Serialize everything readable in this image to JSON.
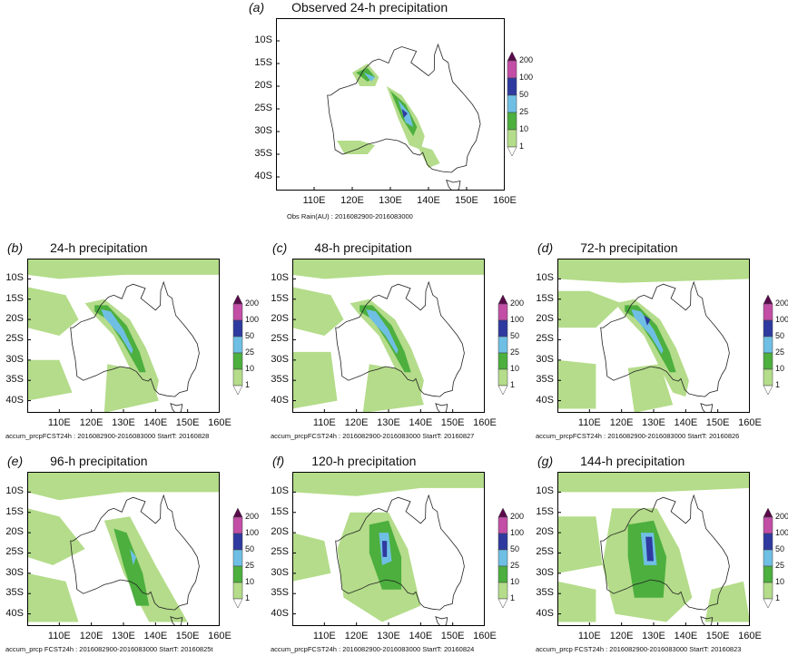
{
  "colors": {
    "light_green": "#b4dc8a",
    "green": "#4caf3e",
    "light_blue": "#6fbfe4",
    "dark_blue": "#2f3aa0",
    "magenta": "#c24ea6",
    "dark_purple": "#5a0a4a",
    "white": "#ffffff"
  },
  "shared": {
    "lat_labels": [
      "10S",
      "15S",
      "20S",
      "25S",
      "30S",
      "35S",
      "40S"
    ],
    "lon_labels": [
      "110E",
      "120E",
      "130E",
      "140E",
      "150E",
      "160E"
    ],
    "colorbar_labels": [
      "200",
      "100",
      "50",
      "25",
      "10",
      "1"
    ]
  },
  "panels": {
    "a": {
      "letter": "(a)",
      "title": "Observed 24-h precipitation",
      "footer": "Obs Rain(AU) : 2016082900-2016083000"
    },
    "b": {
      "letter": "(b)",
      "title": "24-h precipitation",
      "footer": "accum_prcpFCST24h : 2016082900-2016083000   StartT: 20160828"
    },
    "c": {
      "letter": "(c)",
      "title": "48-h precipitation",
      "footer": "accum_prcpFCST24h : 2016082900-2016083000   StartT: 20160827"
    },
    "d": {
      "letter": "(d)",
      "title": "72-h precipitation",
      "footer": "accum_prcpFCST24h : 2016082900-2016083000   StartT: 20160826"
    },
    "e": {
      "letter": "(e)",
      "title": "96-h precipitation",
      "footer": "accum_prcp FCST24h : 2016082900-2016083000   StartT: 20160825t"
    },
    "f": {
      "letter": "(f)",
      "title": "120-h precipitation",
      "footer": "accum_prcpFCST24h : 2016082900-2016083000   StartT: 20160824"
    },
    "g": {
      "letter": "(g)",
      "title": "144-h precipitation",
      "footer": "accum_prcp FCST24h : 2016082900-2016083000   StartT: 20160823"
    }
  }
}
